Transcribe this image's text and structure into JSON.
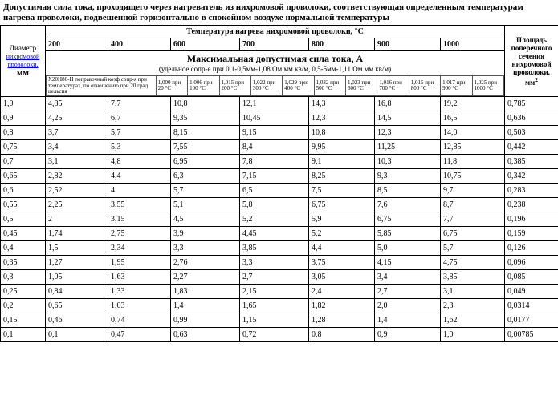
{
  "title": "Допустимая сила тока, проходящего через нагреватель из нихромовой проволоки, соответствующая определенным температурам нагрева проволоки, подвешенной горизонтально в спокойном воздухе нормальной температуры",
  "tempHeader": "Температура нагрева нихромовой проволоки, °С",
  "temps": [
    "200",
    "400",
    "600",
    "700",
    "800",
    "900",
    "1000"
  ],
  "diameterHeader": {
    "label": "Диаметр",
    "link": "нихромовой проволоки,",
    "unit": "мм"
  },
  "mainHeader": {
    "big": "Максимальная допустимая сила тока, А",
    "sub": "(удельное сопр-е при 0,1-0,5мм-1,08 Ом.мм.кв/м, 0,5-5мм-1,11 Ом.мм.кв/м)"
  },
  "areaHeader": "Площадь поперечного сечения нихромовой проволоки, мм",
  "areaSup": "2",
  "inner": {
    "label": "Х20Н80-Н поправочный коэф сопр-я при температурах, по отношению при 20 град цельсия",
    "cells": [
      "1,000 при 20 °С",
      "1,006 при 100 °С",
      "1,015 при 200 °С",
      "1,022 при 300 °С",
      "1,029 при 400 °С",
      "1,032 при 500 °С",
      "1,023 при 600 °С",
      "1,016 при 700 °С",
      "1,015 при 800 °С",
      "1,017 при 900 °С",
      "1,025 при 1000 °С"
    ]
  },
  "rows": [
    [
      "1,0",
      "4,85",
      "7,7",
      "10,8",
      "12,1",
      "14,3",
      "16,8",
      "19,2",
      "0,785"
    ],
    [
      "0,9",
      "4,25",
      "6,7",
      "9,35",
      "10,45",
      "12,3",
      "14,5",
      "16,5",
      "0,636"
    ],
    [
      "0,8",
      "3,7",
      "5,7",
      "8,15",
      "9,15",
      "10,8",
      "12,3",
      "14,0",
      "0,503"
    ],
    [
      "0,75",
      "3,4",
      "5,3",
      "7,55",
      "8,4",
      "9,95",
      "11,25",
      "12,85",
      "0,442"
    ],
    [
      "0,7",
      "3,1",
      "4,8",
      "6,95",
      "7,8",
      "9,1",
      "10,3",
      "11,8",
      "0,385"
    ],
    [
      "0,65",
      "2,82",
      "4,4",
      "6,3",
      "7,15",
      "8,25",
      "9,3",
      "10,75",
      "0,342"
    ],
    [
      "0,6",
      "2,52",
      "4",
      "5,7",
      "6,5",
      "7,5",
      "8,5",
      "9,7",
      "0,283"
    ],
    [
      "0,55",
      "2,25",
      "3,55",
      "5,1",
      "5,8",
      "6,75",
      "7,6",
      "8,7",
      "0,238"
    ],
    [
      "0,5",
      "2",
      "3,15",
      "4,5",
      "5,2",
      "5,9",
      "6,75",
      "7,7",
      "0,196"
    ],
    [
      "0,45",
      "1,74",
      "2,75",
      "3,9",
      "4,45",
      "5,2",
      "5,85",
      "6,75",
      "0,159"
    ],
    [
      "0,4",
      "1,5",
      "2,34",
      "3,3",
      "3,85",
      "4,4",
      "5,0",
      "5,7",
      "0,126"
    ],
    [
      "0,35",
      "1,27",
      "1,95",
      "2,76",
      "3,3",
      "3,75",
      "4,15",
      "4,75",
      "0,096"
    ],
    [
      "0,3",
      "1,05",
      "1,63",
      "2,27",
      "2,7",
      "3,05",
      "3,4",
      "3,85",
      "0,085"
    ],
    [
      "0,25",
      "0,84",
      "1,33",
      "1,83",
      "2,15",
      "2,4",
      "2,7",
      "3,1",
      "0,049"
    ],
    [
      "0,2",
      "0,65",
      "1,03",
      "1,4",
      "1,65",
      "1,82",
      "2,0",
      "2,3",
      "0,0314"
    ],
    [
      "0,15",
      "0,46",
      "0,74",
      "0,99",
      "1,15",
      "1,28",
      "1,4",
      "1,62",
      "0,0177"
    ],
    [
      "0,1",
      "0,1",
      "0,47",
      "0,63",
      "0,72",
      "0,8",
      "0,9",
      "1,0",
      "0,00785"
    ]
  ]
}
